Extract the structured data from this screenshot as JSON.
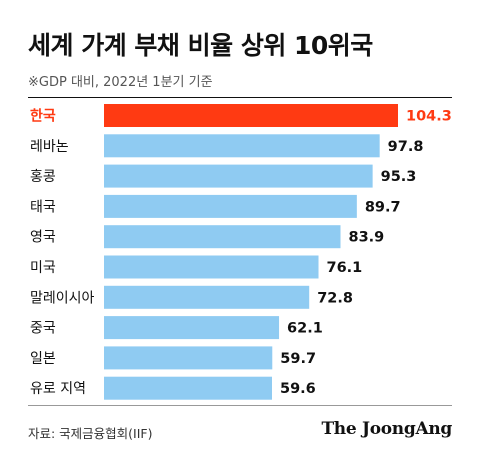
{
  "header": {
    "title": "세계 가계 부채 비율 상위 10위국",
    "subtitle": "※GDP 대비, 2022년 1분기 기준"
  },
  "footer": {
    "source": "자료: 국제금융협회(IIF)",
    "brand": "The JoongAng"
  },
  "colors": {
    "highlight": "#ff3a12",
    "bar": "#8fcbf2",
    "highlight_text": "#ff3a12",
    "text": "#111111"
  },
  "chart_data": {
    "type": "bar",
    "orientation": "horizontal",
    "title": "세계 가계 부채 비율 상위 10위국",
    "subtitle": "※GDP 대비, 2022년 1분기 기준",
    "categories": [
      "한국",
      "레바논",
      "홍콩",
      "태국",
      "영국",
      "미국",
      "말레이시아",
      "중국",
      "일본",
      "유로 지역"
    ],
    "values": [
      104.3,
      97.8,
      95.3,
      89.7,
      83.9,
      76.1,
      72.8,
      62.1,
      59.7,
      59.6
    ],
    "value_labels": [
      "104.3",
      "97.8",
      "95.3",
      "89.7",
      "83.9",
      "76.1",
      "72.8",
      "62.1",
      "59.7",
      "59.6"
    ],
    "highlight_category": "한국",
    "xlim": [
      0,
      104.3
    ],
    "grid": false,
    "legend": "none"
  }
}
